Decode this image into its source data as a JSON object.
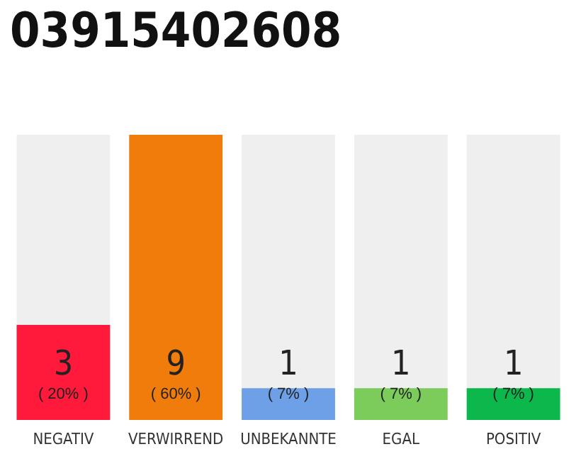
{
  "chart_data": {
    "type": "bar",
    "title": "03915402608",
    "categories": [
      "NEGATIV",
      "VERWIRREND",
      "UNBEKANNTE",
      "EGAL",
      "POSITIV"
    ],
    "values": [
      3,
      9,
      1,
      1,
      1
    ],
    "colors": [
      "#ff1a3c",
      "#f07c0c",
      "#6ea0e8",
      "#7ccc5c",
      "#0cb84c"
    ],
    "value_labels": [
      "3\n( 20% )",
      "9\n( 60% )",
      "1\n( 7% )",
      "1\n( 7% )",
      "1\n( 7% )"
    ]
  }
}
